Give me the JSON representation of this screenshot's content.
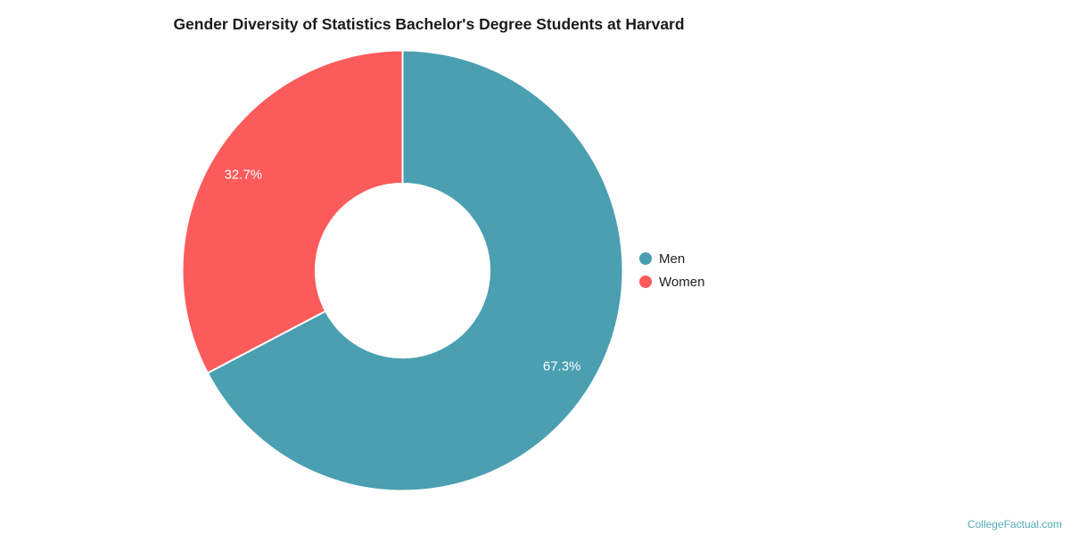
{
  "page": {
    "background": "#ffffff"
  },
  "chart_data": {
    "type": "pie",
    "subtype": "donut",
    "title": "Gender Diversity of Statistics Bachelor's Degree Students at Harvard",
    "categories": [
      "Men",
      "Women"
    ],
    "values": [
      67.3,
      32.7
    ],
    "value_labels": [
      "67.3%",
      "32.7%"
    ],
    "colors": [
      "#4A9FB1",
      "#FC5B5B"
    ],
    "start_angle_deg": 0,
    "direction": "clockwise",
    "hole_ratio": 0.395,
    "slice_border_color": "#ffffff",
    "legend_position": "right",
    "label_color": "#ffffff"
  },
  "legend": {
    "items": [
      {
        "label": "Men",
        "color": "#4A9FB1"
      },
      {
        "label": "Women",
        "color": "#FC5B5B"
      }
    ]
  },
  "watermark": {
    "text": "CollegeFactual.com",
    "color": "#54A9BA"
  }
}
